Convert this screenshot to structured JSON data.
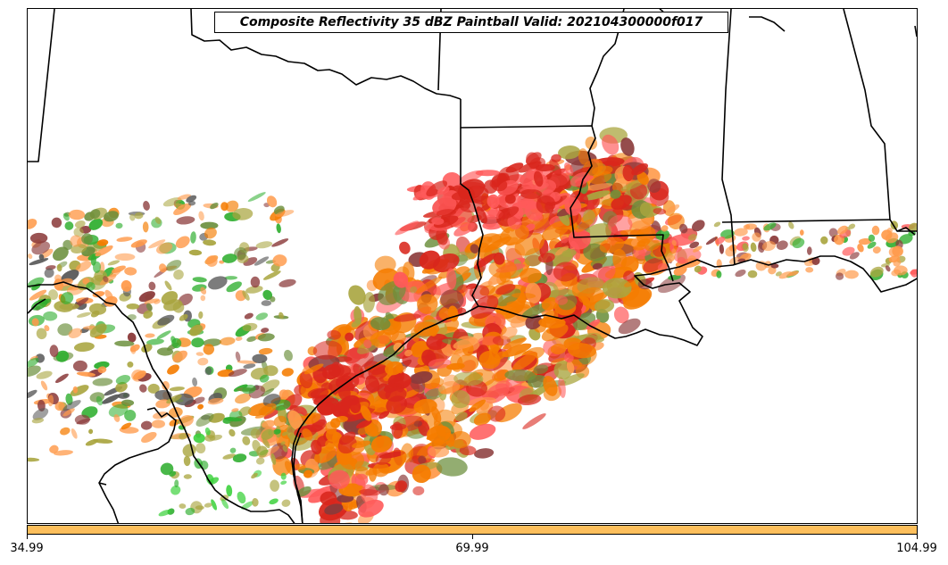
{
  "title": "Composite Reflectivity 35 dBZ Paintball Valid: 202104300000f017",
  "colorbar": {
    "color": "#fdbf5c",
    "ticks": [
      "34.99",
      "69.99",
      "104.99"
    ]
  },
  "member_colors": [
    "#d9261c",
    "#f57c00",
    "#ff9a4a",
    "#ff5a5a",
    "#a9a53f",
    "#2eae2e",
    "#6b8f3c",
    "#8b3a3a",
    "#555555",
    "#3ad13a"
  ]
}
